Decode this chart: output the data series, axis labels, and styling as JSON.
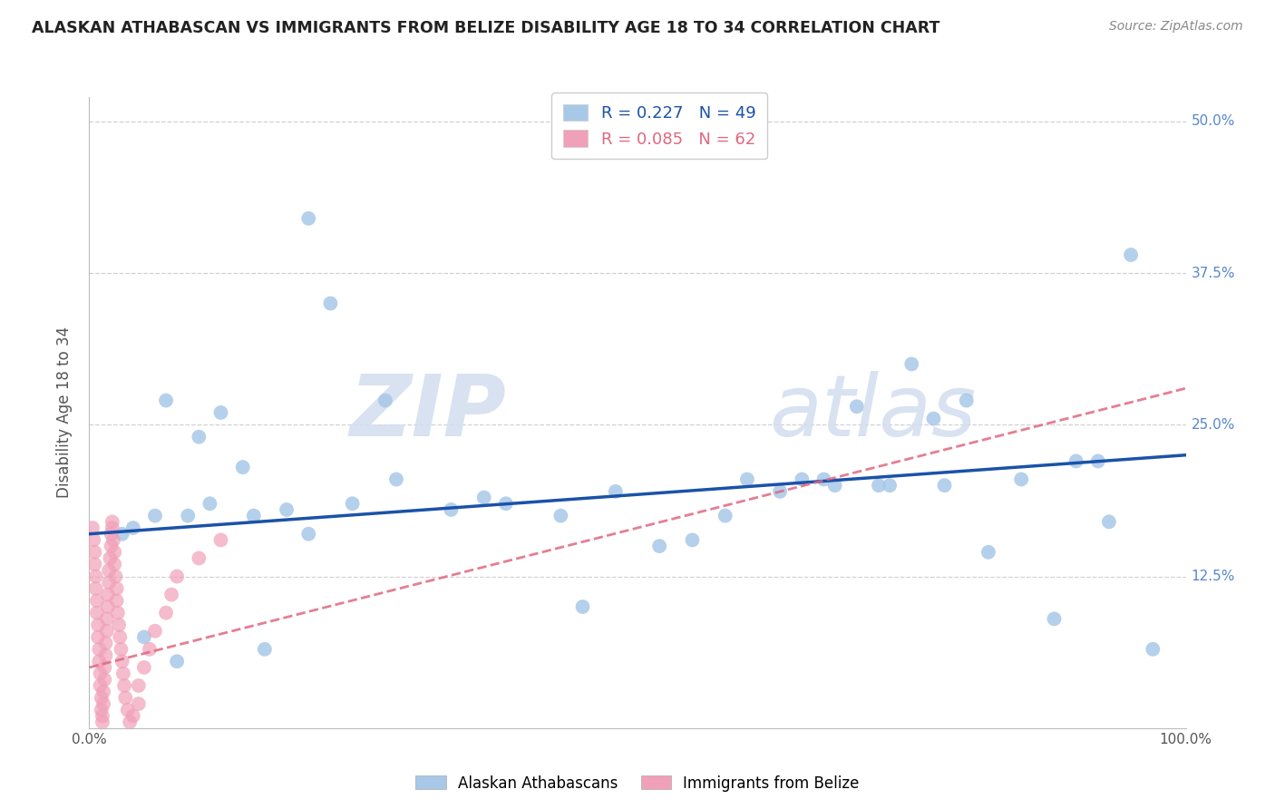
{
  "title": "ALASKAN ATHABASCAN VS IMMIGRANTS FROM BELIZE DISABILITY AGE 18 TO 34 CORRELATION CHART",
  "source": "Source: ZipAtlas.com",
  "ylabel": "Disability Age 18 to 34",
  "blue_label": "Alaskan Athabascans",
  "pink_label": "Immigrants from Belize",
  "blue_R": 0.227,
  "blue_N": 49,
  "pink_R": 0.085,
  "pink_N": 62,
  "blue_color": "#a8c8e8",
  "pink_color": "#f0a0b8",
  "blue_line_color": "#1a52a8",
  "pink_line_color": "#e06880",
  "blue_scatter_x": [
    20.0,
    22.0,
    7.0,
    12.0,
    10.0,
    14.0,
    27.0,
    36.0,
    75.0,
    80.0,
    70.0,
    77.0,
    65.0,
    85.0,
    92.0,
    68.0,
    73.0,
    58.0,
    63.0,
    95.0,
    3.0,
    4.0,
    6.0,
    9.0,
    11.0,
    15.0,
    18.0,
    20.0,
    24.0,
    28.0,
    33.0,
    38.0,
    43.0,
    48.0,
    55.0,
    45.0,
    52.0,
    60.0,
    67.0,
    72.0,
    78.0,
    82.0,
    88.0,
    90.0,
    93.0,
    97.0,
    5.0,
    16.0,
    8.0
  ],
  "blue_scatter_y": [
    42.0,
    35.0,
    27.0,
    26.0,
    24.0,
    21.5,
    27.0,
    19.0,
    30.0,
    27.0,
    26.5,
    25.5,
    20.5,
    20.5,
    22.0,
    20.0,
    20.0,
    17.5,
    19.5,
    39.0,
    16.0,
    16.5,
    17.5,
    17.5,
    18.5,
    17.5,
    18.0,
    16.0,
    18.5,
    20.5,
    18.0,
    18.5,
    17.5,
    19.5,
    15.5,
    10.0,
    15.0,
    20.5,
    20.5,
    20.0,
    20.0,
    14.5,
    9.0,
    22.0,
    17.0,
    6.5,
    7.5,
    6.5,
    5.5
  ],
  "pink_scatter_x": [
    0.3,
    0.4,
    0.5,
    0.5,
    0.6,
    0.6,
    0.7,
    0.7,
    0.8,
    0.8,
    0.9,
    0.9,
    1.0,
    1.0,
    1.1,
    1.1,
    1.2,
    1.2,
    1.3,
    1.3,
    1.4,
    1.4,
    1.5,
    1.5,
    1.6,
    1.6,
    1.7,
    1.7,
    1.8,
    1.8,
    1.9,
    2.0,
    2.0,
    2.1,
    2.1,
    2.2,
    2.3,
    2.3,
    2.4,
    2.5,
    2.5,
    2.6,
    2.7,
    2.8,
    2.9,
    3.0,
    3.1,
    3.2,
    3.3,
    3.5,
    3.7,
    4.0,
    4.5,
    4.5,
    5.0,
    5.5,
    6.0,
    7.0,
    7.5,
    8.0,
    10.0,
    12.0
  ],
  "pink_scatter_y": [
    16.5,
    15.5,
    14.5,
    13.5,
    12.5,
    11.5,
    10.5,
    9.5,
    8.5,
    7.5,
    6.5,
    5.5,
    4.5,
    3.5,
    2.5,
    1.5,
    0.5,
    1.0,
    2.0,
    3.0,
    4.0,
    5.0,
    6.0,
    7.0,
    8.0,
    9.0,
    10.0,
    11.0,
    12.0,
    13.0,
    14.0,
    15.0,
    16.0,
    17.0,
    16.5,
    15.5,
    14.5,
    13.5,
    12.5,
    11.5,
    10.5,
    9.5,
    8.5,
    7.5,
    6.5,
    5.5,
    4.5,
    3.5,
    2.5,
    1.5,
    0.5,
    1.0,
    2.0,
    3.5,
    5.0,
    6.5,
    8.0,
    9.5,
    11.0,
    12.5,
    14.0,
    15.5
  ],
  "blue_line_x": [
    0,
    100
  ],
  "blue_line_y": [
    16.0,
    22.5
  ],
  "pink_line_x": [
    0,
    100
  ],
  "pink_line_y": [
    5.0,
    28.0
  ],
  "xlim": [
    0,
    100
  ],
  "ylim": [
    0,
    52
  ],
  "ytick_values": [
    12.5,
    25.0,
    37.5,
    50.0
  ],
  "ytick_labels": [
    "12.5%",
    "25.0%",
    "37.5%",
    "50.0%"
  ],
  "xtick_positions": [
    0,
    25,
    50,
    75,
    100
  ],
  "xtick_labels": [
    "0.0%",
    "",
    "",
    "",
    "100.0%"
  ],
  "grid_color": "#cccccc",
  "bg_color": "#ffffff",
  "watermark_color": "#d4dff0"
}
